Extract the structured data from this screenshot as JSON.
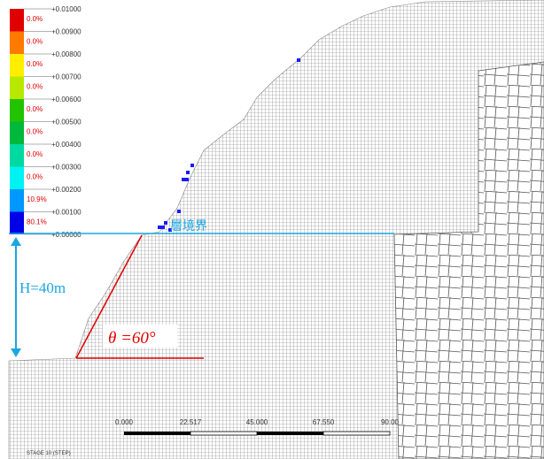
{
  "legend": {
    "items": [
      {
        "color": "#e00000",
        "percent": "0.0%"
      },
      {
        "color": "#ff7a00",
        "percent": "0.0%"
      },
      {
        "color": "#ffee00",
        "percent": "0.0%"
      },
      {
        "color": "#b8e800",
        "percent": "0.0%"
      },
      {
        "color": "#22c400",
        "percent": "0.0%"
      },
      {
        "color": "#00b83a",
        "percent": "0.0%"
      },
      {
        "color": "#00d9a0",
        "percent": "0.0%"
      },
      {
        "color": "#00f2f2",
        "percent": "0.0%"
      },
      {
        "color": "#0098ff",
        "percent": "10.9%"
      },
      {
        "color": "#0000e8",
        "percent": "80.1%"
      }
    ],
    "ticks": [
      "+0.01000",
      "+0.00900",
      "+0.00800",
      "+0.00700",
      "+0.00600",
      "+0.00500",
      "+0.00400",
      "+0.00300",
      "+0.00200",
      "+0.00100",
      "+0.00000"
    ]
  },
  "annotations": {
    "layer": "層境界",
    "height": "H=40m",
    "angle": "θ =60°"
  },
  "scale_bar": [
    "0.000",
    "22.517",
    "45.000",
    "67.550",
    "90.00"
  ],
  "footer": "STAGE 10 (STEP)"
}
